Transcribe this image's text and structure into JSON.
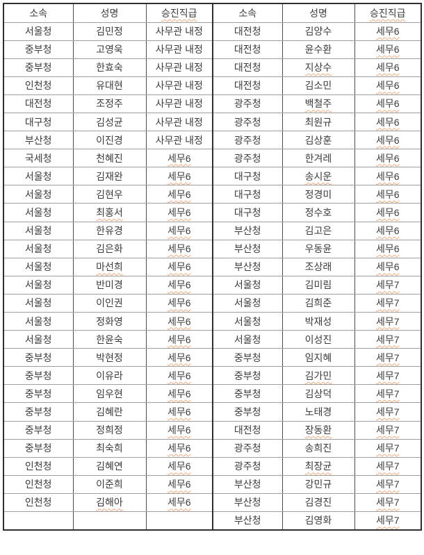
{
  "colors": {
    "text": "#3b3b3b",
    "border_dark": "#2e2e2e",
    "border_light": "#9e9e9e",
    "spellcheck_underline": "#f2a878",
    "background": "#ffffff"
  },
  "table": {
    "headers": [
      "소속",
      "성명",
      "승진직급",
      "소속",
      "성명",
      "승진직급"
    ],
    "rows": [
      [
        "서울청",
        "김민정",
        "사무관 내정",
        "대전청",
        "김양수",
        "세무6"
      ],
      [
        "중부청",
        "고영욱",
        "사무관 내정",
        "대전청",
        "윤수환",
        "세무6"
      ],
      [
        "중부청",
        "한효숙",
        "사무관 내정",
        "대전청",
        "지상수",
        "세무6"
      ],
      [
        "인천청",
        "유대현",
        "사무관 내정",
        "대전청",
        "김소민",
        "세무6"
      ],
      [
        "대전청",
        "조정주",
        "사무관 내정",
        "광주청",
        "백철주",
        "세무6"
      ],
      [
        "대구청",
        "김성균",
        "사무관 내정",
        "광주청",
        "최원규",
        "세무6"
      ],
      [
        "부산청",
        "이진경",
        "사무관 내정",
        "광주청",
        "김상훈",
        "세무6"
      ],
      [
        "국세청",
        "천혜진",
        "세무6",
        "광주청",
        "한겨레",
        "세무6"
      ],
      [
        "서울청",
        "김재완",
        "세무6",
        "대구청",
        "송시운",
        "세무6"
      ],
      [
        "서울청",
        "김현우",
        "세무6",
        "대구청",
        "정경미",
        "세무6"
      ],
      [
        "서울청",
        "최홍서",
        "세무6",
        "대구청",
        "정수호",
        "세무6"
      ],
      [
        "서울청",
        "한유경",
        "세무6",
        "부산청",
        "김고은",
        "세무6"
      ],
      [
        "서울청",
        "김은화",
        "세무6",
        "부산청",
        "우동윤",
        "세무6"
      ],
      [
        "서울청",
        "마선희",
        "세무6",
        "부산청",
        "조상래",
        "세무6"
      ],
      [
        "서울청",
        "반미경",
        "세무6",
        "서울청",
        "김미림",
        "세무7"
      ],
      [
        "서울청",
        "이인권",
        "세무6",
        "서울청",
        "김희준",
        "세무7"
      ],
      [
        "서울청",
        "정화영",
        "세무6",
        "서울청",
        "박재성",
        "세무7"
      ],
      [
        "서울청",
        "한윤숙",
        "세무6",
        "서울청",
        "이성진",
        "세무7"
      ],
      [
        "중부청",
        "박현정",
        "세무6",
        "중부청",
        "임지혜",
        "세무7"
      ],
      [
        "중부청",
        "이유라",
        "세무6",
        "중부청",
        "김가민",
        "세무7"
      ],
      [
        "중부청",
        "임우현",
        "세무6",
        "중부청",
        "김상덕",
        "세무7"
      ],
      [
        "중부청",
        "김혜란",
        "세무6",
        "중부청",
        "노태경",
        "세무7"
      ],
      [
        "중부청",
        "정희정",
        "세무6",
        "대전청",
        "장동환",
        "세무7"
      ],
      [
        "중부청",
        "최숙희",
        "세무6",
        "광주청",
        "송희진",
        "세무7"
      ],
      [
        "인천청",
        "김혜연",
        "세무6",
        "광주청",
        "최장균",
        "세무7"
      ],
      [
        "인천청",
        "이준희",
        "세무6",
        "부산청",
        "강민규",
        "세무7"
      ],
      [
        "인천청",
        "김해아",
        "세무6",
        "부산청",
        "김경진",
        "세무7"
      ],
      [
        "",
        "",
        "",
        "부산청",
        "김영화",
        "세무7"
      ]
    ],
    "spellcheck_underlined_values": [
      "승진직급",
      "세무6",
      "세무7",
      "최홍서",
      "마선희",
      "김해아",
      "지상수",
      "백철주",
      "송시운",
      "김가민",
      "장동환",
      "최장균"
    ]
  }
}
